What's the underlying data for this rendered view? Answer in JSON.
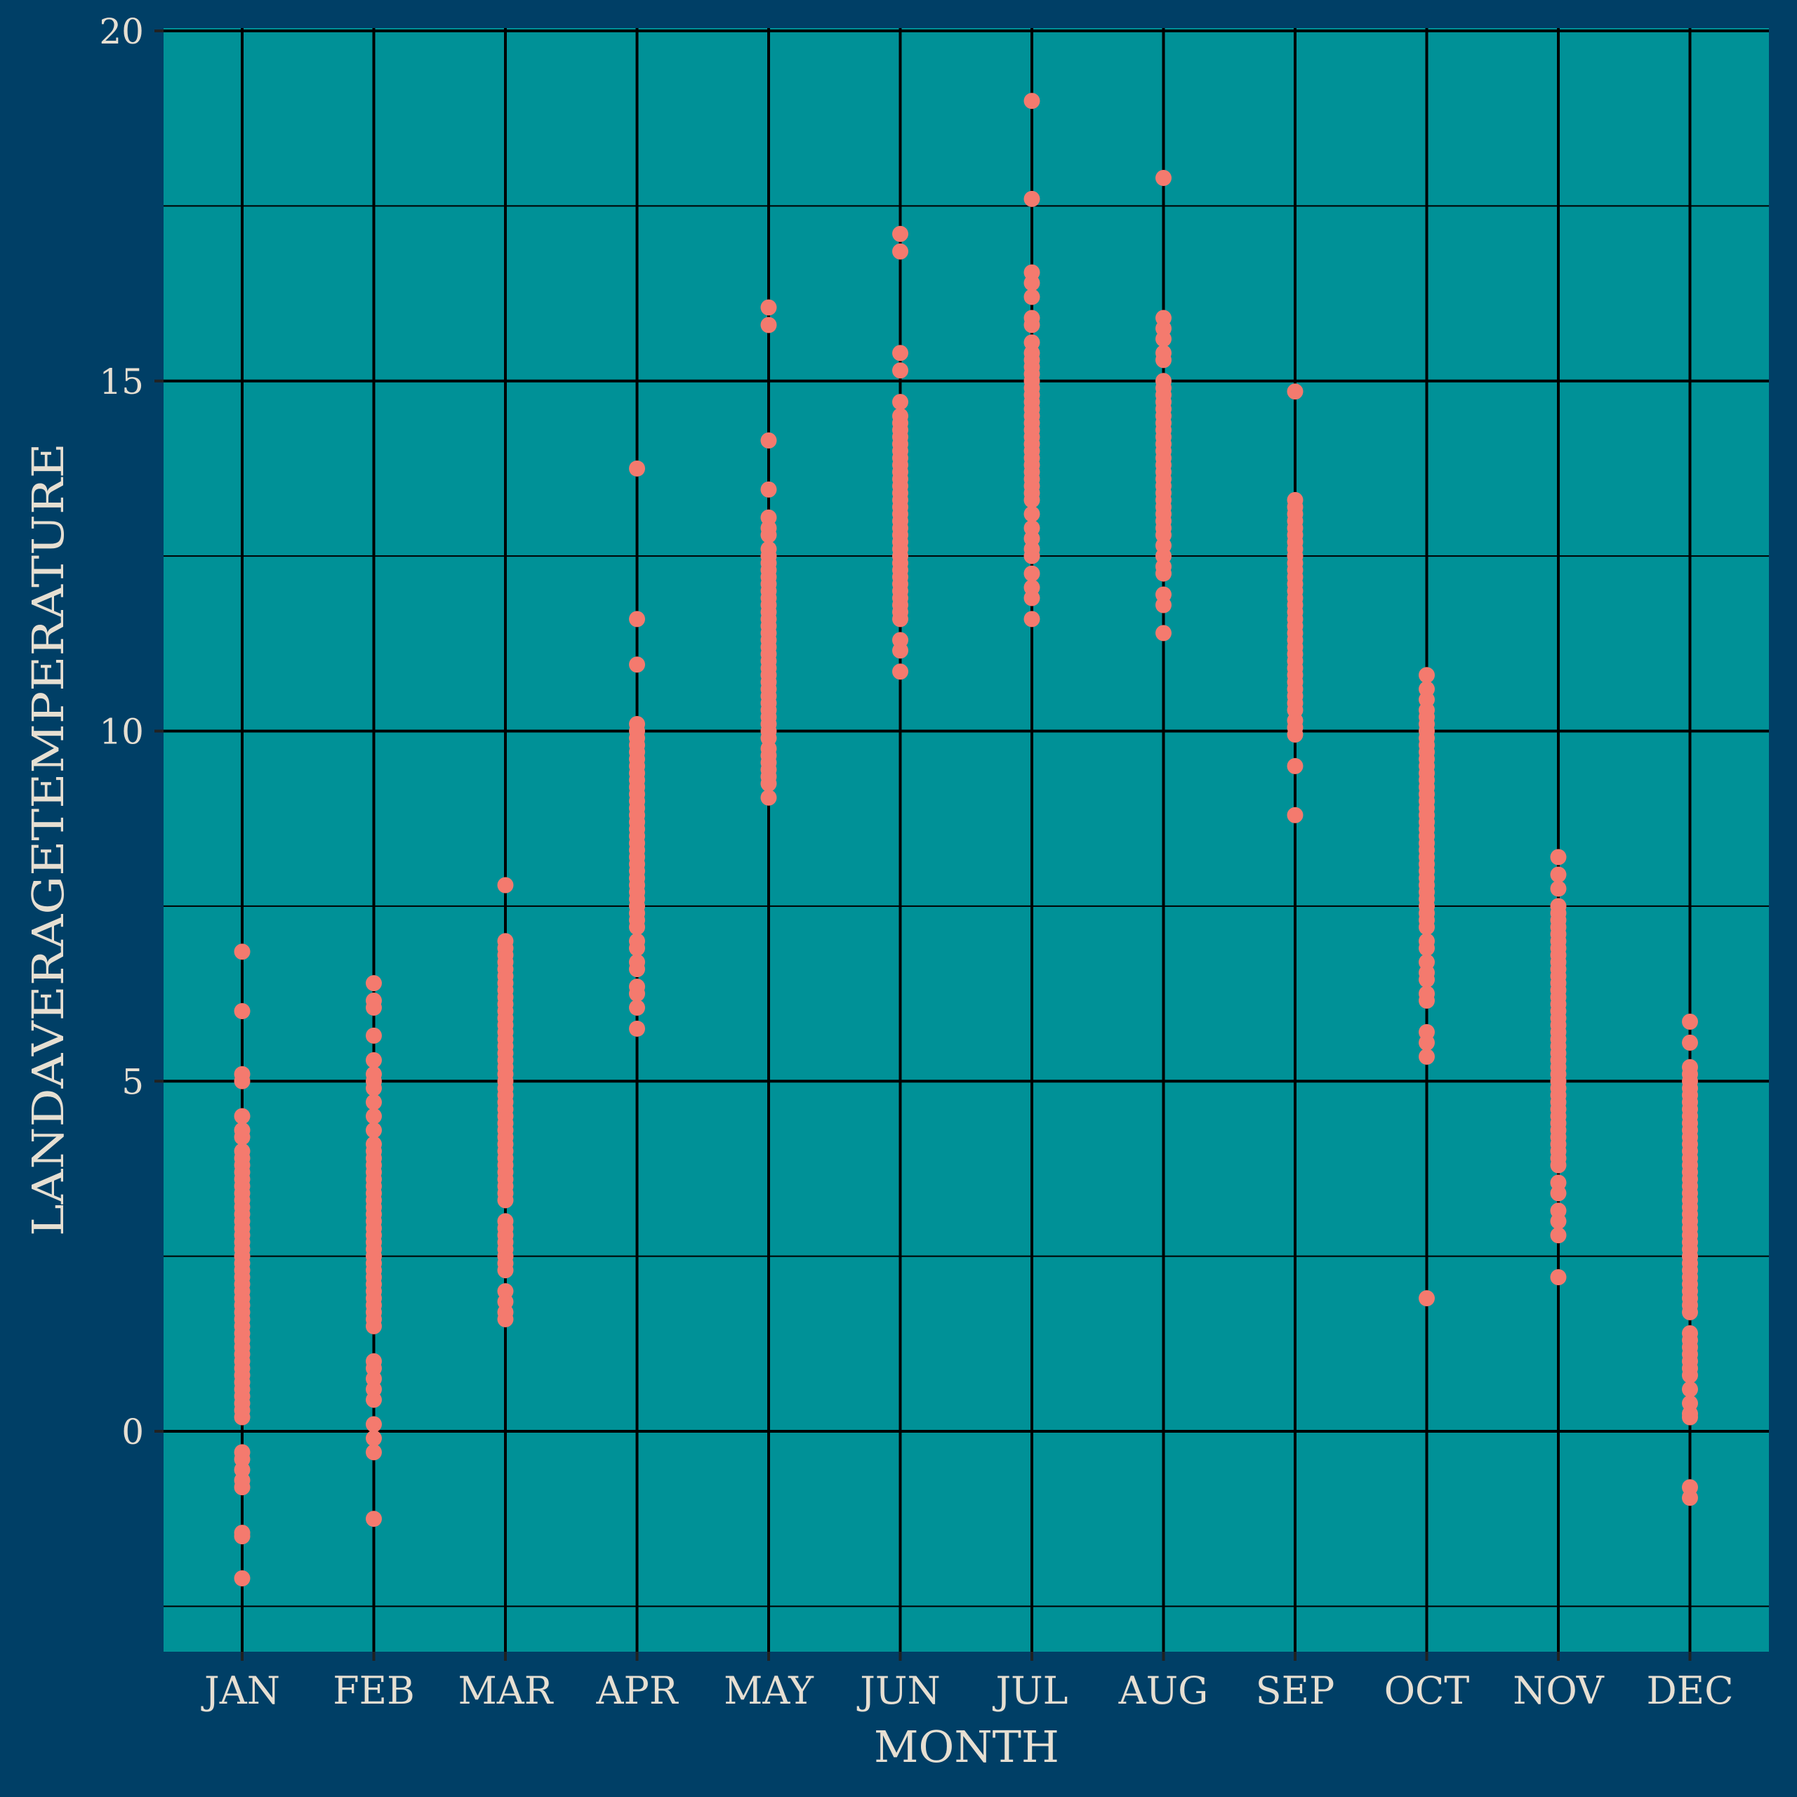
{
  "colors": {
    "background": "#003f66",
    "panel": "#009197",
    "grid_major": "#000000",
    "grid_minor": "#000000",
    "point": "#f47a6e",
    "text": "#e6dfd2"
  },
  "chart_data": {
    "type": "scatter",
    "title": "",
    "xlabel": "MONTH",
    "ylabel": "LANDAVERAGETEMPERATURE",
    "categories": [
      "JAN",
      "FEB",
      "MAR",
      "APR",
      "MAY",
      "JUN",
      "JUL",
      "AUG",
      "SEP",
      "OCT",
      "NOV",
      "DEC"
    ],
    "ylim": [
      -3.1,
      20
    ],
    "yticks": [
      0,
      5,
      10,
      15,
      20
    ],
    "ytick_labels": [
      "0",
      "5",
      "10",
      "15",
      "20"
    ],
    "grid": true,
    "legend": "none",
    "series": [
      {
        "values": [
          [
            -2.1,
            -1.5,
            -1.45,
            -0.8,
            -0.7,
            -0.55,
            -0.4,
            -0.3,
            0.2,
            0.3,
            0.4,
            0.5,
            0.6,
            0.7,
            0.8,
            0.9,
            1.0,
            1.1,
            1.2,
            1.3,
            1.4,
            1.5,
            1.6,
            1.7,
            1.8,
            1.9,
            2.0,
            2.1,
            2.2,
            2.3,
            2.4,
            2.5,
            2.6,
            2.7,
            2.8,
            2.9,
            3.0,
            3.1,
            3.2,
            3.3,
            3.4,
            3.5,
            3.6,
            3.7,
            3.8,
            3.9,
            4.0,
            4.2,
            4.3,
            4.5,
            5.0,
            5.1,
            6.0,
            6.85
          ],
          [
            -1.25,
            -0.3,
            -0.1,
            0.1,
            0.45,
            0.6,
            0.75,
            0.9,
            1.0,
            1.5,
            1.6,
            1.7,
            1.8,
            1.9,
            2.0,
            2.1,
            2.2,
            2.3,
            2.4,
            2.5,
            2.6,
            2.7,
            2.8,
            2.9,
            3.0,
            3.1,
            3.2,
            3.3,
            3.4,
            3.5,
            3.6,
            3.7,
            3.8,
            3.9,
            4.0,
            4.1,
            4.3,
            4.5,
            4.7,
            4.9,
            5.0,
            5.1,
            5.3,
            5.65,
            6.05,
            6.15,
            6.4
          ],
          [
            1.6,
            1.7,
            1.85,
            2.0,
            2.3,
            2.4,
            2.5,
            2.6,
            2.7,
            2.8,
            2.9,
            3.0,
            3.3,
            3.4,
            3.5,
            3.6,
            3.7,
            3.8,
            3.9,
            4.0,
            4.1,
            4.2,
            4.3,
            4.4,
            4.5,
            4.6,
            4.7,
            4.8,
            4.9,
            5.0,
            5.1,
            5.2,
            5.3,
            5.4,
            5.5,
            5.6,
            5.7,
            5.8,
            5.9,
            6.0,
            6.1,
            6.2,
            6.3,
            6.4,
            6.5,
            6.6,
            6.7,
            6.8,
            6.9,
            7.0,
            7.8
          ],
          [
            5.75,
            6.05,
            6.25,
            6.35,
            6.6,
            6.7,
            6.9,
            7.0,
            7.2,
            7.3,
            7.4,
            7.5,
            7.6,
            7.7,
            7.8,
            7.9,
            8.0,
            8.1,
            8.2,
            8.3,
            8.4,
            8.5,
            8.6,
            8.7,
            8.8,
            8.9,
            9.0,
            9.1,
            9.2,
            9.3,
            9.4,
            9.5,
            9.6,
            9.7,
            9.8,
            9.9,
            10.0,
            10.1,
            10.95,
            11.6,
            13.75
          ],
          [
            9.05,
            9.25,
            9.35,
            9.45,
            9.55,
            9.65,
            9.75,
            9.9,
            10.0,
            10.1,
            10.2,
            10.3,
            10.4,
            10.5,
            10.6,
            10.7,
            10.8,
            10.9,
            11.0,
            11.1,
            11.2,
            11.3,
            11.4,
            11.5,
            11.6,
            11.7,
            11.8,
            11.9,
            12.0,
            12.1,
            12.2,
            12.3,
            12.4,
            12.5,
            12.6,
            12.8,
            12.9,
            13.05,
            13.45,
            14.15,
            15.8,
            16.05
          ],
          [
            10.85,
            11.15,
            11.3,
            11.6,
            11.7,
            11.8,
            11.9,
            12.0,
            12.1,
            12.2,
            12.3,
            12.4,
            12.5,
            12.6,
            12.7,
            12.8,
            12.9,
            13.0,
            13.1,
            13.2,
            13.3,
            13.4,
            13.5,
            13.6,
            13.7,
            13.8,
            13.9,
            14.0,
            14.1,
            14.2,
            14.3,
            14.4,
            14.5,
            14.7,
            15.15,
            15.4,
            16.85,
            17.1
          ],
          [
            11.6,
            11.9,
            12.05,
            12.25,
            12.5,
            12.6,
            12.75,
            12.9,
            13.1,
            13.3,
            13.4,
            13.5,
            13.6,
            13.7,
            13.8,
            13.9,
            14.0,
            14.1,
            14.2,
            14.3,
            14.4,
            14.5,
            14.6,
            14.7,
            14.8,
            14.9,
            15.0,
            15.1,
            15.2,
            15.3,
            15.4,
            15.55,
            15.8,
            15.9,
            16.2,
            16.4,
            16.55,
            17.6,
            19.0
          ],
          [
            11.4,
            11.8,
            11.95,
            12.25,
            12.35,
            12.5,
            12.65,
            12.8,
            12.9,
            13.0,
            13.1,
            13.2,
            13.3,
            13.4,
            13.5,
            13.6,
            13.7,
            13.8,
            13.9,
            14.0,
            14.1,
            14.2,
            14.3,
            14.4,
            14.5,
            14.6,
            14.7,
            14.8,
            14.9,
            15.0,
            15.3,
            15.4,
            15.6,
            15.75,
            15.9,
            17.9
          ],
          [
            8.8,
            9.5,
            9.95,
            10.05,
            10.15,
            10.3,
            10.4,
            10.5,
            10.6,
            10.7,
            10.8,
            10.9,
            11.0,
            11.1,
            11.2,
            11.3,
            11.4,
            11.5,
            11.6,
            11.7,
            11.8,
            11.9,
            12.0,
            12.1,
            12.2,
            12.3,
            12.4,
            12.5,
            12.6,
            12.7,
            12.8,
            12.9,
            13.0,
            13.1,
            13.2,
            13.3,
            14.85
          ],
          [
            1.9,
            5.35,
            5.55,
            5.7,
            6.15,
            6.25,
            6.45,
            6.55,
            6.7,
            6.9,
            7.0,
            7.2,
            7.3,
            7.4,
            7.5,
            7.6,
            7.7,
            7.8,
            7.9,
            8.0,
            8.1,
            8.2,
            8.3,
            8.4,
            8.5,
            8.6,
            8.7,
            8.8,
            8.9,
            9.0,
            9.1,
            9.2,
            9.3,
            9.4,
            9.5,
            9.6,
            9.7,
            9.8,
            9.9,
            10.0,
            10.1,
            10.2,
            10.3,
            10.45,
            10.6,
            10.8
          ],
          [
            2.2,
            2.8,
            3.0,
            3.15,
            3.4,
            3.55,
            3.8,
            3.9,
            4.0,
            4.1,
            4.2,
            4.3,
            4.4,
            4.5,
            4.6,
            4.7,
            4.8,
            4.9,
            5.0,
            5.1,
            5.2,
            5.3,
            5.4,
            5.5,
            5.6,
            5.7,
            5.8,
            5.9,
            6.0,
            6.1,
            6.2,
            6.3,
            6.4,
            6.5,
            6.6,
            6.7,
            6.8,
            6.9,
            7.0,
            7.1,
            7.2,
            7.3,
            7.4,
            7.5,
            7.75,
            7.95,
            8.2
          ],
          [
            -0.95,
            -0.8,
            0.2,
            0.25,
            0.4,
            0.6,
            0.8,
            0.9,
            1.0,
            1.1,
            1.2,
            1.3,
            1.4,
            1.7,
            1.8,
            1.9,
            2.0,
            2.1,
            2.2,
            2.3,
            2.4,
            2.5,
            2.6,
            2.7,
            2.8,
            2.9,
            3.0,
            3.1,
            3.2,
            3.3,
            3.4,
            3.5,
            3.6,
            3.7,
            3.8,
            3.9,
            4.0,
            4.1,
            4.2,
            4.3,
            4.4,
            4.5,
            4.6,
            4.7,
            4.8,
            4.9,
            5.0,
            5.1,
            5.2,
            5.55,
            5.85
          ]
        ]
      }
    ]
  }
}
